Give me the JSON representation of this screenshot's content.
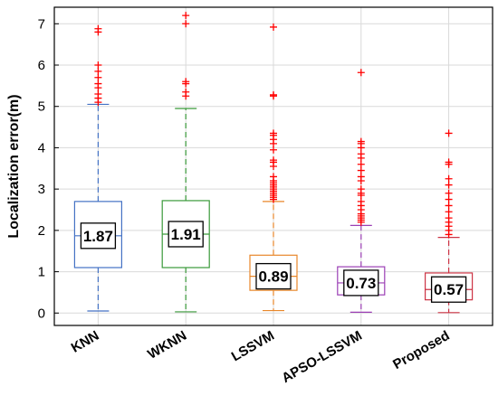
{
  "chart_data": {
    "type": "boxplot",
    "title": "",
    "xlabel": "",
    "ylabel": "Localization error(m)",
    "ylim": [
      -0.3,
      7.4
    ],
    "yticks": [
      0,
      1,
      2,
      3,
      4,
      5,
      6,
      7
    ],
    "grid": true,
    "categories": [
      "KNN",
      "WKNN",
      "LSSVM",
      "APSO-LSSVM",
      "Proposed"
    ],
    "series": [
      {
        "q1": 1.1,
        "median": 1.87,
        "q3": 2.7,
        "whisker_low": 0.05,
        "whisker_high": 5.05,
        "label": "1.87",
        "color": "#4472c4",
        "outliers": [
          5.1,
          5.2,
          5.3,
          5.45,
          5.55,
          5.7,
          5.85,
          6.0,
          6.8,
          6.88
        ]
      },
      {
        "q1": 1.1,
        "median": 1.91,
        "q3": 2.72,
        "whisker_low": 0.03,
        "whisker_high": 4.95,
        "label": "1.91",
        "color": "#3a9a3a",
        "outliers": [
          5.25,
          5.35,
          5.55,
          5.6,
          7.0,
          7.2
        ]
      },
      {
        "q1": 0.55,
        "median": 0.89,
        "q3": 1.4,
        "whisker_low": 0.06,
        "whisker_high": 2.7,
        "label": "0.89",
        "color": "#e8872a",
        "outliers": [
          2.75,
          2.8,
          2.85,
          2.9,
          2.95,
          3.0,
          3.05,
          3.1,
          3.15,
          3.2,
          3.3,
          3.55,
          3.65,
          3.7,
          3.95,
          4.1,
          4.2,
          4.3,
          4.35,
          5.25,
          5.28,
          6.92
        ]
      },
      {
        "q1": 0.44,
        "median": 0.73,
        "q3": 1.12,
        "whisker_low": 0.02,
        "whisker_high": 2.12,
        "label": "0.73",
        "color": "#9b3fb5",
        "outliers": [
          2.2,
          2.25,
          2.3,
          2.35,
          2.4,
          2.5,
          2.6,
          2.7,
          2.85,
          2.9,
          3.0,
          3.2,
          3.3,
          3.45,
          3.6,
          3.75,
          3.85,
          4.0,
          4.1,
          4.15,
          5.82
        ]
      },
      {
        "q1": 0.32,
        "median": 0.57,
        "q3": 0.97,
        "whisker_low": 0.01,
        "whisker_high": 1.83,
        "label": "0.57",
        "color": "#cc3344",
        "outliers": [
          1.9,
          2.0,
          2.1,
          2.2,
          2.3,
          2.45,
          2.6,
          2.75,
          2.9,
          3.1,
          3.25,
          3.6,
          3.65,
          4.35
        ]
      }
    ],
    "outlier_color": "#ff0000"
  }
}
